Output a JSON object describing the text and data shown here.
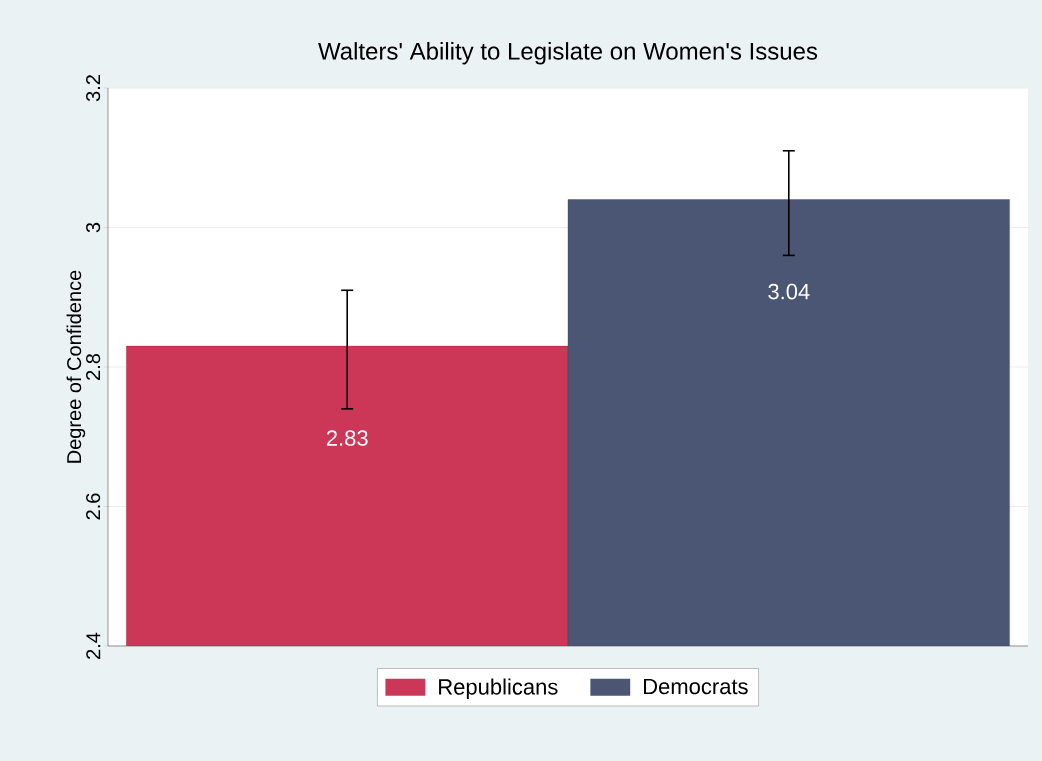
{
  "chart_data": {
    "type": "bar",
    "title": "Walters' Ability to Legislate on Women's Issues",
    "ylabel": "Degree of Confidence",
    "categories": [
      null
    ],
    "series": [
      {
        "name": "Republicans",
        "color": "#cc3757",
        "values": [
          2.83
        ],
        "errors": [
          [
            2.74,
            2.91
          ]
        ]
      },
      {
        "name": "Democrats",
        "color": "#4b5675",
        "values": [
          3.04
        ],
        "errors": [
          [
            2.96,
            3.11
          ]
        ]
      }
    ],
    "ylim": [
      2.4,
      3.2
    ],
    "yticks": [
      2.4,
      2.6,
      2.8,
      3,
      3.2
    ],
    "grid": "y",
    "legend": "bottom",
    "data_labels": true
  }
}
